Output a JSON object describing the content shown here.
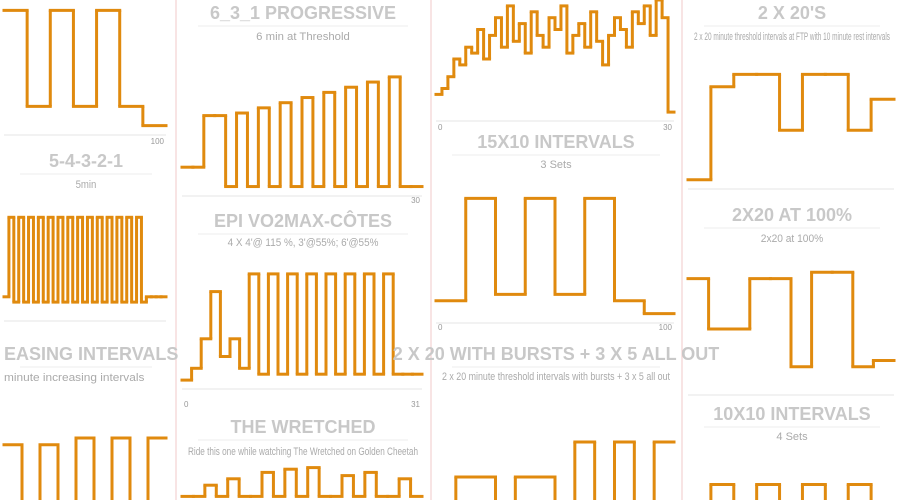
{
  "cards": [
    {
      "values": [
        95,
        20,
        95,
        20,
        95,
        20,
        5
      ],
      "xticks": [
        100
      ]
    },
    {
      "title": "5-4-3-2-1",
      "subtitle": "5min",
      "values": [
        20,
        95,
        15,
        95,
        15,
        95,
        15,
        95,
        15,
        95,
        15,
        95,
        15,
        95,
        15,
        95,
        15,
        95,
        15,
        95,
        15,
        95,
        15,
        95,
        15,
        95,
        15,
        95,
        15,
        20,
        20,
        20,
        20
      ]
    },
    {
      "title": "EASING INTERVALS",
      "subtitle": "minute increasing intervals",
      "values": [
        70,
        20,
        70,
        20,
        75,
        20,
        75,
        20,
        75
      ]
    },
    {
      "title": "6_3_1 PROGRESSIVE",
      "subtitle": "6 min at Threshold",
      "values": [
        20,
        20,
        60,
        60,
        5,
        62,
        5,
        66,
        5,
        70,
        5,
        74,
        5,
        78,
        5,
        82,
        5,
        86,
        5,
        90,
        5,
        5
      ],
      "xticks": [
        30
      ]
    },
    {
      "title": "EPI VO2MAX-CÔTES",
      "subtitle": "4 X 4'@ 115 %, 3'@55%; 6'@55%",
      "values": [
        5,
        15,
        40,
        80,
        25,
        40,
        15,
        95,
        10,
        95,
        10,
        95,
        10,
        95,
        10,
        95,
        10,
        95,
        10,
        95,
        10,
        95,
        10,
        10,
        10
      ],
      "xticks": [
        0,
        31
      ]
    },
    {
      "title": "THE WRETCHED",
      "subtitle": "Ride this one while watching The Wretched on Golden Cheetah",
      "values": [
        5,
        5,
        40,
        5,
        60,
        5,
        5,
        80,
        5,
        90,
        5,
        95,
        5,
        5,
        70,
        5,
        80,
        5,
        5,
        60,
        5
      ]
    },
    {
      "values": [
        20,
        25,
        35,
        50,
        45,
        60,
        55,
        75,
        50,
        70,
        85,
        60,
        95,
        65,
        80,
        55,
        90,
        70,
        60,
        85,
        75,
        95,
        55,
        70,
        80,
        60,
        90,
        65,
        45,
        70,
        85,
        75,
        60,
        90,
        80,
        95,
        70,
        100,
        85,
        5
      ],
      "xticks": [
        0,
        30
      ]
    },
    {
      "title": "15X10 INTERVALS",
      "subtitle": "3 Sets",
      "values": [
        15,
        95,
        20,
        95,
        20,
        95,
        15,
        5
      ],
      "xticks": [
        0,
        100
      ]
    },
    {
      "title": "2 X 20 WITH BURSTS + 3 X 5 ALL OUT",
      "subtitle": "2 x 20 minute threshold intervals with bursts + 3 x 5 all out",
      "values": [
        5,
        45,
        45,
        5,
        45,
        45,
        5,
        70,
        5,
        70,
        5,
        70
      ]
    },
    {
      "title": "2 X 20'S",
      "subtitle": "2 x 20 minute threshold intervals at FTP with 10 minute rest intervals",
      "values": [
        5,
        80,
        90,
        90,
        45,
        90,
        90,
        45,
        70
      ]
    },
    {
      "title": "2X20 AT 100%",
      "subtitle": "2x20 at 100%",
      "values": [
        90,
        50,
        50,
        90,
        90,
        20,
        95,
        95,
        20,
        25
      ]
    },
    {
      "title": "10X10 INTERVALS",
      "subtitle": "4 Sets",
      "values": [
        20,
        75,
        20,
        75,
        20,
        75,
        20,
        75,
        20
      ]
    }
  ]
}
